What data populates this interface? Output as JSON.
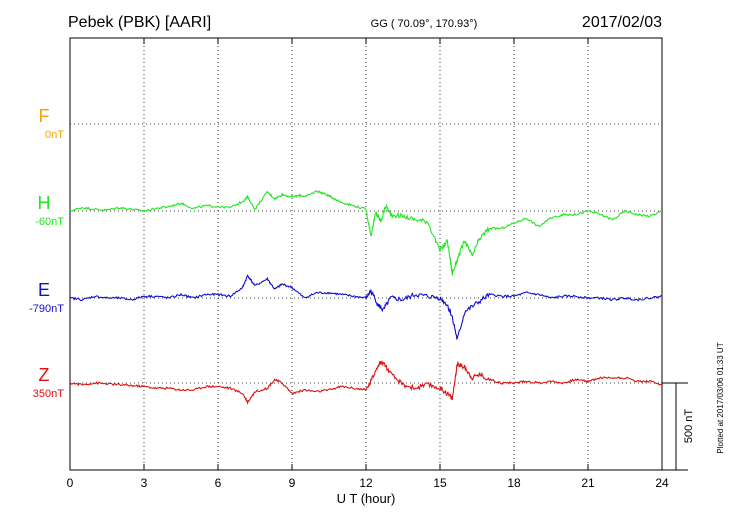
{
  "header": {
    "station": "Pebek (PBK)  [AARI]",
    "coords": "GG ( 70.09°, 170.93°)",
    "date": "2017/02/03"
  },
  "footer": {
    "plotted": "Plotted at 2017/03/06 01:33 UT"
  },
  "chart_data": {
    "type": "line",
    "xlabel": "U T (hour)",
    "xlim": [
      0,
      24
    ],
    "xticks": [
      "0",
      "3",
      "6",
      "9",
      "12",
      "15",
      "18",
      "21",
      "24"
    ],
    "scale_bar": {
      "label": "500 nT",
      "nT": 500
    },
    "colors": {
      "F": "#f5a000",
      "H": "#22e622",
      "E": "#1010cc",
      "Z": "#dd1111"
    },
    "series": [
      {
        "name": "F",
        "baseline_label": "0nT",
        "baseline_nT": 0,
        "x": [],
        "y": []
      },
      {
        "name": "H",
        "baseline_label": "-60nT",
        "baseline_nT": -60,
        "x": [
          0,
          0.5,
          1,
          1.5,
          2,
          2.5,
          3,
          3.5,
          4,
          4.5,
          5,
          5.5,
          6,
          6.5,
          7,
          7.2,
          7.5,
          8,
          8.3,
          8.6,
          9,
          9.3,
          9.6,
          10,
          10.3,
          10.6,
          11,
          11.5,
          12,
          12.2,
          12.4,
          12.6,
          12.8,
          13,
          13.5,
          14,
          14.5,
          15,
          15.3,
          15.5,
          15.7,
          16,
          16.3,
          16.6,
          17,
          17.5,
          18,
          18.5,
          19,
          19.5,
          20,
          20.5,
          21,
          21.5,
          22,
          22.5,
          23,
          23.5,
          24
        ],
        "y": [
          -60,
          -40,
          -50,
          -55,
          -40,
          -50,
          -60,
          -45,
          -35,
          -15,
          -45,
          -30,
          -35,
          -40,
          -5,
          20,
          -50,
          50,
          10,
          35,
          20,
          30,
          25,
          55,
          40,
          20,
          -10,
          -30,
          -50,
          -200,
          -70,
          -120,
          -30,
          -80,
          -90,
          -110,
          -120,
          -290,
          -230,
          -420,
          -340,
          -230,
          -320,
          -220,
          -160,
          -160,
          -130,
          -100,
          -150,
          -100,
          -80,
          -80,
          -60,
          -80,
          -110,
          -60,
          -80,
          -90,
          -60
        ]
      },
      {
        "name": "E",
        "baseline_label": "-790nT",
        "baseline_nT": -790,
        "x": [
          0,
          0.5,
          1,
          1.5,
          2,
          2.5,
          3,
          3.5,
          4,
          4.5,
          5,
          5.5,
          6,
          6.5,
          7,
          7.2,
          7.5,
          8,
          8.3,
          8.6,
          9,
          9.5,
          10,
          10.5,
          11,
          11.5,
          12,
          12.2,
          12.5,
          12.7,
          13,
          13.5,
          14,
          14.5,
          15,
          15.3,
          15.5,
          15.7,
          16,
          16.5,
          17,
          17.5,
          18,
          18.5,
          19,
          19.5,
          20,
          20.5,
          21,
          21.5,
          22,
          22.5,
          23,
          23.5,
          24
        ],
        "y": [
          -790,
          -800,
          -780,
          -790,
          -790,
          -800,
          -780,
          -780,
          -790,
          -770,
          -790,
          -770,
          -770,
          -780,
          -730,
          -660,
          -720,
          -680,
          -740,
          -710,
          -730,
          -790,
          -760,
          -760,
          -770,
          -780,
          -790,
          -750,
          -830,
          -860,
          -790,
          -800,
          -770,
          -780,
          -790,
          -830,
          -900,
          -1030,
          -870,
          -820,
          -770,
          -780,
          -780,
          -760,
          -770,
          -790,
          -780,
          -780,
          -790,
          -790,
          -800,
          -790,
          -800,
          -790,
          -780
        ]
      },
      {
        "name": "Z",
        "baseline_label": "350nT",
        "baseline_nT": 350,
        "x": [
          0,
          0.5,
          1,
          1.5,
          2,
          2.5,
          3,
          3.5,
          4,
          4.5,
          5,
          5.5,
          6,
          6.5,
          7,
          7.2,
          7.5,
          8,
          8.3,
          8.6,
          9,
          9.5,
          10,
          10.5,
          11,
          11.5,
          12,
          12.2,
          12.5,
          12.7,
          13,
          13.5,
          14,
          14.5,
          15,
          15.3,
          15.5,
          15.7,
          16,
          16.3,
          16.6,
          17,
          17.5,
          18,
          18.5,
          19,
          19.5,
          20,
          20.5,
          21,
          21.5,
          22,
          22.5,
          23,
          23.5,
          24
        ],
        "y": [
          350,
          340,
          350,
          345,
          340,
          335,
          330,
          320,
          320,
          310,
          310,
          330,
          330,
          320,
          290,
          240,
          300,
          320,
          370,
          350,
          290,
          310,
          300,
          310,
          330,
          320,
          310,
          360,
          460,
          470,
          400,
          340,
          320,
          340,
          320,
          290,
          260,
          460,
          440,
          380,
          400,
          370,
          350,
          350,
          360,
          350,
          360,
          350,
          370,
          360,
          380,
          380,
          380,
          360,
          360,
          340
        ]
      }
    ]
  }
}
